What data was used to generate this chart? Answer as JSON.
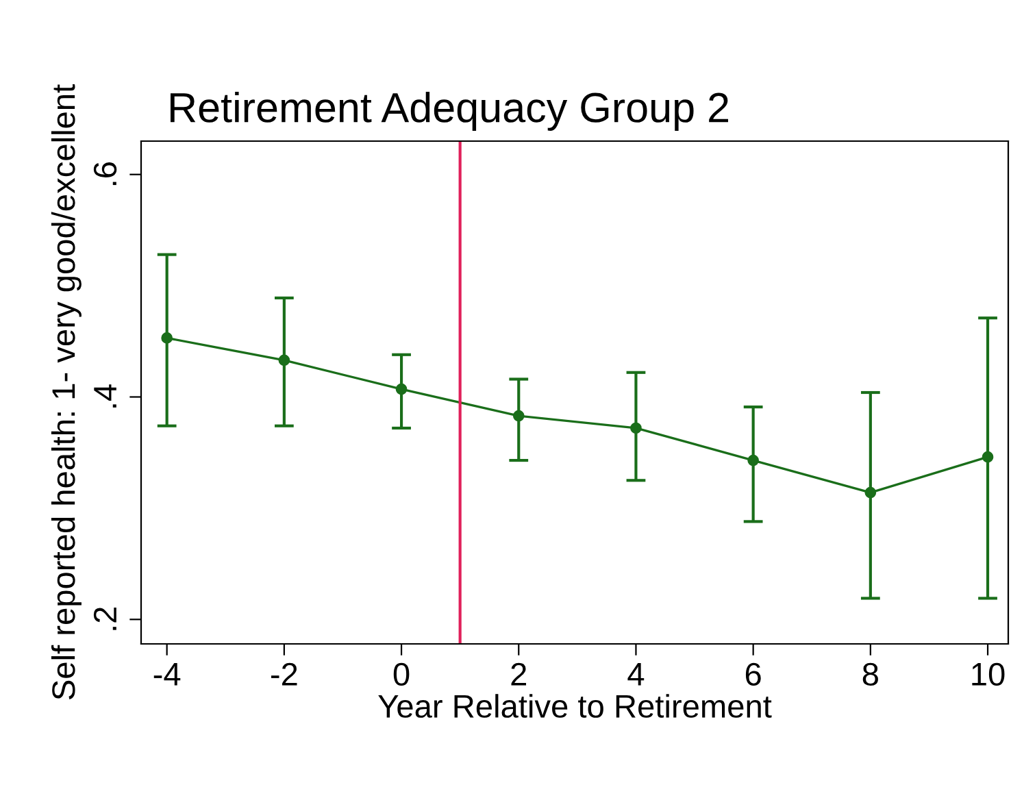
{
  "chart_data": {
    "type": "line",
    "title": "Retirement Adequacy Group 2",
    "xlabel": "Year Relative to Retirement",
    "ylabel": "Self reported health: 1- very good/excellent",
    "x": [
      -4,
      -2,
      0,
      2,
      4,
      6,
      8,
      10
    ],
    "series": [
      {
        "color": "#1a6e1a",
        "values": [
          0.453,
          0.433,
          0.407,
          0.383,
          0.372,
          0.343,
          0.314,
          0.346
        ],
        "errors": [
          [
            0.374,
            0.528
          ],
          [
            0.374,
            0.489
          ],
          [
            0.372,
            0.438
          ],
          [
            0.343,
            0.416
          ],
          [
            0.325,
            0.422
          ],
          [
            0.288,
            0.391
          ],
          [
            0.219,
            0.404
          ],
          [
            0.219,
            0.471
          ]
        ]
      }
    ],
    "marker": "circle",
    "line_style": "solid",
    "xlim": [
      -4.44,
      10.35
    ],
    "xticks": [
      -4,
      -2,
      0,
      2,
      4,
      6,
      8,
      10
    ],
    "ylim": [
      0.178,
      0.63
    ],
    "yticks": [
      {
        "value": 0.2,
        "label": ".2"
      },
      {
        "value": 0.4,
        "label": ".4"
      },
      {
        "value": 0.6,
        "label": ".6"
      }
    ],
    "ref_lines": [
      {
        "axis": "x",
        "value": 1,
        "color": "#e0205a"
      }
    ],
    "grid": false,
    "legend": false
  }
}
